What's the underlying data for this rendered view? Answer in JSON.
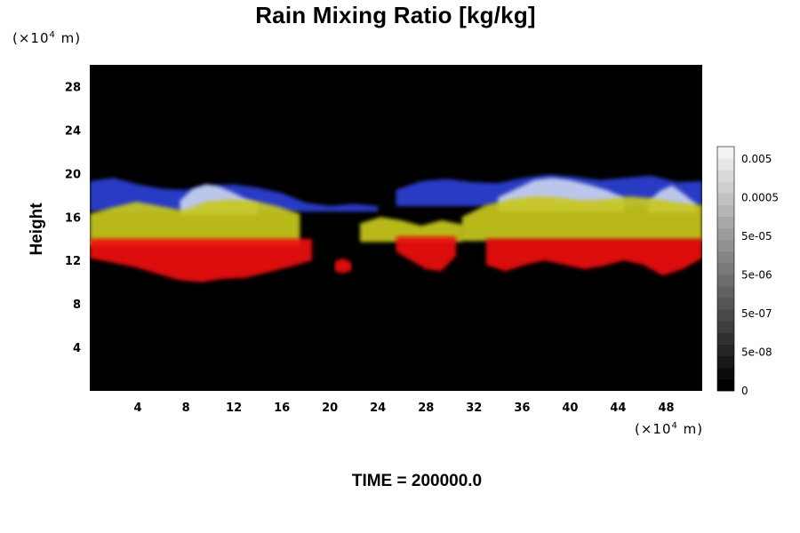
{
  "chart_data": {
    "type": "heatmap",
    "title": "Rain Mixing Ratio [kg/kg]",
    "ylabel": "Height",
    "xlabel": "",
    "y_unit": "(×10⁴ m)",
    "x_unit": "(×10⁴ m)",
    "unit_prefix": "(×10",
    "unit_exponent": "4",
    "unit_suffix": " m)",
    "footer": "TIME = 200000.0",
    "xlim": [
      0,
      51
    ],
    "ylim": [
      0,
      30
    ],
    "x_ticks": [
      4,
      8,
      12,
      16,
      20,
      24,
      28,
      32,
      36,
      40,
      44,
      48
    ],
    "y_ticks": [
      4,
      8,
      12,
      16,
      20,
      24,
      28
    ],
    "background_color": "#000000",
    "colorbar": {
      "labels": [
        "0.005",
        "0.0005",
        "5e-05",
        "5e-06",
        "5e-07",
        "5e-08",
        "0"
      ],
      "levels": 21,
      "color_low": "#000000",
      "color_high": "#f2f2f2"
    },
    "bands": [
      {
        "name": "blue",
        "color": "#2a3fd6",
        "segments": [
          {
            "x0": 0,
            "x1": 24,
            "y_top": [
              19.3,
              19.6,
              19.0,
              18.6,
              18.5,
              18.9,
              19.0,
              18.7,
              18.2,
              17.3,
              17.0,
              17.2,
              17.0
            ],
            "y_bottom": 16.5
          },
          {
            "x0": 25.5,
            "x1": 51,
            "y_top": [
              18.5,
              19.3,
              19.5,
              19.2,
              19.1,
              19.6,
              19.9,
              19.7,
              19.4,
              19.6,
              19.8,
              19.2,
              19.3
            ],
            "y_bottom": 17.0
          }
        ]
      },
      {
        "name": "light-blue",
        "color": "#c8d2ee",
        "segments": [
          {
            "x0": 7.5,
            "x1": 14,
            "y_top": [
              17.5,
              18.6,
              19.0,
              18.8,
              18.3,
              17.7,
              17.2
            ],
            "y_bottom": 16.2
          },
          {
            "x0": 34,
            "x1": 44.5,
            "y_top": [
              17.8,
              18.6,
              19.4,
              19.6,
              19.4,
              19.0,
              18.5,
              17.8
            ],
            "y_bottom": 16.5
          },
          {
            "x0": 46.5,
            "x1": 50.5,
            "y_top": [
              17.4,
              18.4,
              18.9,
              18.1,
              17.2
            ],
            "y_bottom": 16.4
          }
        ]
      },
      {
        "name": "yellow",
        "color": "#c8c81e",
        "segments": [
          {
            "x0": 0,
            "x1": 17.5,
            "y_top": [
              16.3,
              16.9,
              17.4,
              17.0,
              16.6,
              17.4,
              17.6,
              17.5,
              17.0,
              16.3
            ],
            "y_bottom": 13.3
          },
          {
            "x0": 22.5,
            "x1": 31,
            "y_top": [
              15.4,
              16.0,
              15.7,
              15.2,
              15.7,
              15.3
            ],
            "y_bottom": 13.7
          },
          {
            "x0": 31,
            "x1": 51,
            "y_top": [
              16.0,
              17.1,
              17.6,
              17.9,
              17.8,
              17.5,
              17.6,
              17.9,
              17.7,
              17.3,
              17.1
            ],
            "y_bottom": 13.8
          }
        ]
      },
      {
        "name": "red",
        "color": "#ee0a0a",
        "segments": [
          {
            "x0": 0,
            "x1": 18.5,
            "y_top": 14.0,
            "y_bottom": [
              12.2,
              11.8,
              11.4,
              10.8,
              10.2,
              10.0,
              10.3,
              10.4,
              10.9,
              11.4,
              12.0
            ]
          },
          {
            "x0": 25.5,
            "x1": 30.5,
            "y_top": 14.2,
            "y_bottom": [
              12.8,
              12.0,
              11.2,
              11.0,
              12.4
            ]
          },
          {
            "x0": 33,
            "x1": 51,
            "y_top": 14.0,
            "y_bottom": [
              11.6,
              11.0,
              11.6,
              12.0,
              11.6,
              11.2,
              11.5,
              12.0,
              11.6,
              10.6,
              11.2,
              12.2
            ]
          }
        ]
      },
      {
        "name": "red-blob",
        "color": "#ee0a0a",
        "segments": [
          {
            "x0": 20.4,
            "x1": 21.8,
            "y_top": [
              11.9,
              12.2,
              11.8
            ],
            "y_bottom": [
              11.0,
              10.8,
              11.1
            ]
          }
        ]
      }
    ]
  }
}
